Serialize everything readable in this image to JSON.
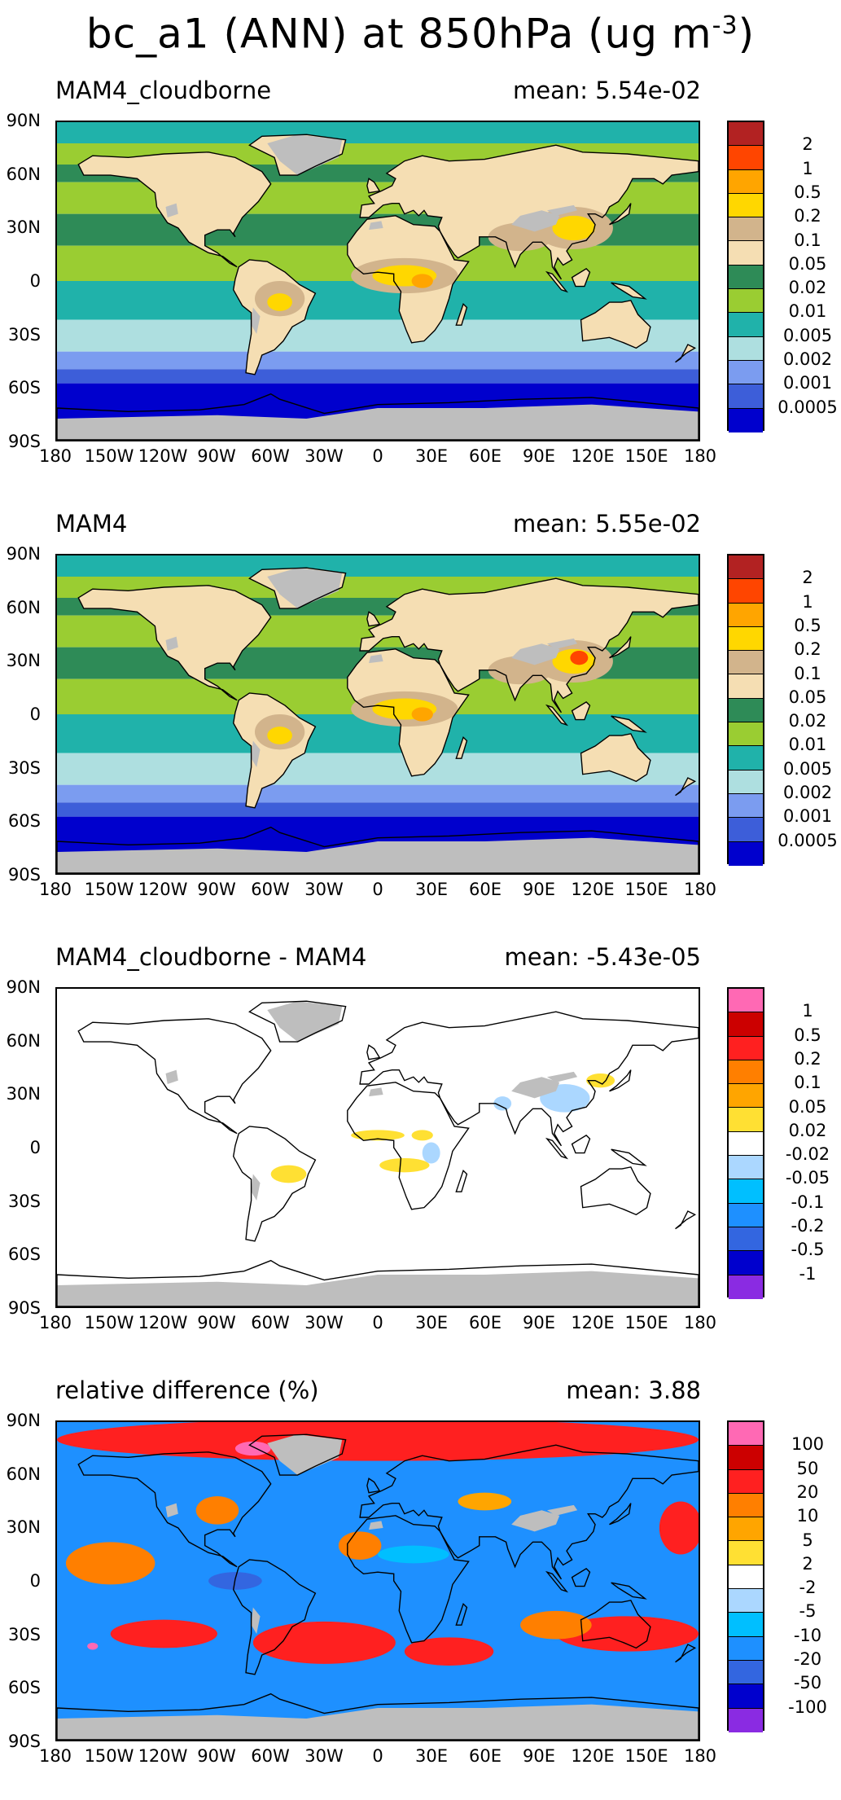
{
  "title": "bc_a1 (ANN) at 850hPa (ug m",
  "title_sup": "-3",
  "title_end": ")",
  "lat_labels": [
    "90N",
    "60N",
    "30N",
    "0",
    "30S",
    "60S",
    "90S"
  ],
  "lon_labels": [
    "180",
    "150W",
    "120W",
    "90W",
    "60W",
    "30W",
    "0",
    "30E",
    "60E",
    "90E",
    "120E",
    "150E",
    "180"
  ],
  "panels": [
    {
      "title": "MAM4_cloudborne",
      "mean": "mean: 5.54e-02",
      "type": "abs",
      "levels": [
        "2",
        "1",
        "0.5",
        "0.2",
        "0.1",
        "0.05",
        "0.02",
        "0.01",
        "0.005",
        "0.002",
        "0.001",
        "0.0005"
      ],
      "colors": [
        "#b22222",
        "#ff4500",
        "#ffa500",
        "#ffd700",
        "#d2b48c",
        "#f5deb3",
        "#2e8b57",
        "#9acd32",
        "#20b2aa",
        "#aedfe0",
        "#7b9cf0",
        "#3d5ed9",
        "#0000cd"
      ]
    },
    {
      "title": "MAM4",
      "mean": "mean: 5.55e-02",
      "type": "abs",
      "levels": [
        "2",
        "1",
        "0.5",
        "0.2",
        "0.1",
        "0.05",
        "0.02",
        "0.01",
        "0.005",
        "0.002",
        "0.001",
        "0.0005"
      ],
      "colors": [
        "#b22222",
        "#ff4500",
        "#ffa500",
        "#ffd700",
        "#d2b48c",
        "#f5deb3",
        "#2e8b57",
        "#9acd32",
        "#20b2aa",
        "#aedfe0",
        "#7b9cf0",
        "#3d5ed9",
        "#0000cd"
      ]
    },
    {
      "title": "MAM4_cloudborne - MAM4",
      "mean": "mean: -5.43e-05",
      "type": "diff",
      "levels": [
        "1",
        "0.5",
        "0.2",
        "0.1",
        "0.05",
        "0.02",
        "-0.02",
        "-0.05",
        "-0.1",
        "-0.2",
        "-0.5",
        "-1"
      ],
      "colors": [
        "#ff69b4",
        "#cc0000",
        "#ff2020",
        "#ff7f00",
        "#ffa500",
        "#ffe033",
        "#ffffff",
        "#abd7ff",
        "#00bfff",
        "#1e90ff",
        "#3366e0",
        "#0000cd",
        "#8a2be2"
      ]
    },
    {
      "title": "relative difference (%)",
      "mean": "mean:   3.88",
      "type": "rel",
      "levels": [
        "100",
        "50",
        "20",
        "10",
        "5",
        "2",
        "-2",
        "-5",
        "-10",
        "-20",
        "-50",
        "-100"
      ],
      "colors": [
        "#ff69b4",
        "#cc0000",
        "#ff2020",
        "#ff7f00",
        "#ffa500",
        "#ffe033",
        "#ffffff",
        "#abd7ff",
        "#00bfff",
        "#1e90ff",
        "#3366e0",
        "#0000cd",
        "#8a2be2"
      ]
    }
  ]
}
